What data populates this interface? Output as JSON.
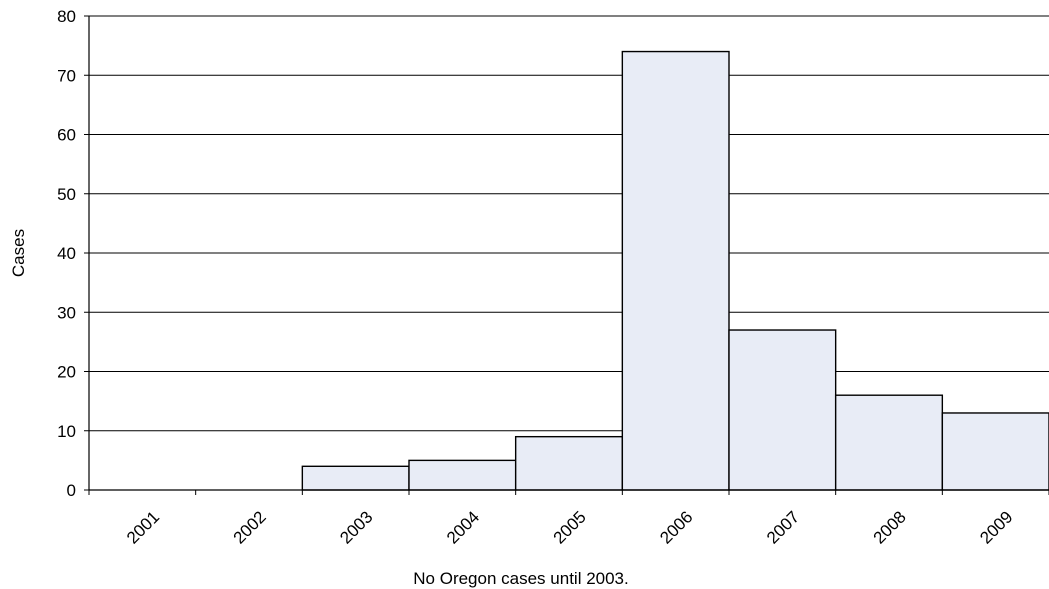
{
  "chart_data": {
    "type": "bar",
    "categories": [
      "2001",
      "2002",
      "2003",
      "2004",
      "2005",
      "2006",
      "2007",
      "2008",
      "2009"
    ],
    "values": [
      0,
      0,
      4,
      5,
      9,
      74,
      27,
      16,
      13
    ],
    "ylabel": "Cases",
    "xlabel": "No Oregon cases until 2003.",
    "ylim": [
      0,
      80
    ],
    "yticks": [
      0,
      10,
      20,
      30,
      40,
      50,
      60,
      70,
      80
    ],
    "grid": true,
    "bar_color": "#e8ecf6"
  }
}
